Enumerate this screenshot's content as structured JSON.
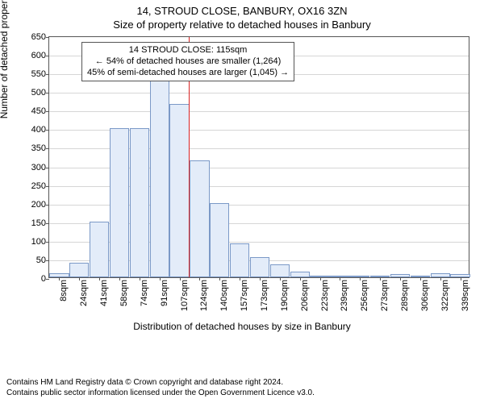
{
  "title_main": "14, STROUD CLOSE, BANBURY, OX16 3ZN",
  "title_sub": "Size of property relative to detached houses in Banbury",
  "yaxis_label": "Number of detached properties",
  "xaxis_label": "Distribution of detached houses by size in Banbury",
  "chart": {
    "type": "histogram",
    "ylim": [
      0,
      650
    ],
    "ytick_step": 50,
    "bar_fill": "#e3ecf9",
    "bar_stroke": "#7b99c7",
    "grid_color": "#d6d6d6",
    "axis_color": "#555555",
    "label_fontsize": 11,
    "marker_line_color": "#d92424",
    "marker_x_sqm": 115,
    "x_categories_sqm": [
      8,
      24,
      41,
      58,
      74,
      91,
      107,
      124,
      140,
      157,
      173,
      190,
      206,
      223,
      239,
      256,
      273,
      289,
      306,
      322,
      339
    ],
    "bar_values": [
      10,
      40,
      150,
      400,
      400,
      530,
      465,
      315,
      200,
      90,
      55,
      35,
      15,
      5,
      5,
      5,
      3,
      8,
      3,
      10,
      8
    ]
  },
  "annotation": {
    "line1": "14 STROUD CLOSE: 115sqm",
    "line2": "← 54% of detached houses are smaller (1,264)",
    "line3": "45% of semi-detached houses are larger (1,045) →"
  },
  "footer": {
    "line1": "Contains HM Land Registry data © Crown copyright and database right 2024.",
    "line2": "Contains public sector information licensed under the Open Government Licence v3.0."
  }
}
